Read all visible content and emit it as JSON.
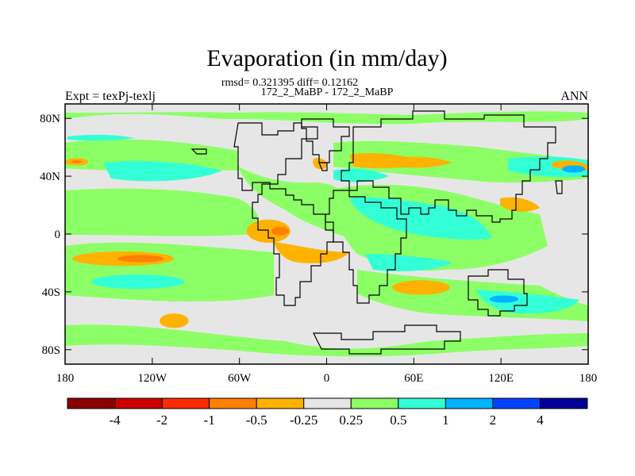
{
  "chart_data": {
    "type": "heatmap",
    "title": "Evaporation (in mm/day)",
    "stats_line": "rmsd= 0.321395 diff= 0.12162",
    "subtitle": "172_2_MaBP - 172_2_MaBP",
    "left_label": "Expt = texPj-texlj",
    "right_label": "ANN",
    "x_ticks": [
      {
        "value": -180,
        "label": "180"
      },
      {
        "value": -120,
        "label": "120W"
      },
      {
        "value": -60,
        "label": "60W"
      },
      {
        "value": 0,
        "label": "0"
      },
      {
        "value": 60,
        "label": "60E"
      },
      {
        "value": 120,
        "label": "120E"
      },
      {
        "value": 180,
        "label": "180"
      }
    ],
    "y_ticks": [
      {
        "value": 80,
        "label": "80N"
      },
      {
        "value": 40,
        "label": "40N"
      },
      {
        "value": 0,
        "label": "0"
      },
      {
        "value": -40,
        "label": "40S"
      },
      {
        "value": -80,
        "label": "80S"
      }
    ],
    "xlim": [
      -180,
      180
    ],
    "ylim": [
      -90,
      90
    ],
    "colorbar": {
      "colors": [
        "#8b0000",
        "#cc0000",
        "#ff2a00",
        "#ff7f00",
        "#ffb200",
        "#e6e6e6",
        "#8cff66",
        "#33ffd6",
        "#00b3ff",
        "#0044ff",
        "#000099"
      ],
      "labels": [
        "-4",
        "-2",
        "-1",
        "-0.5",
        "-0.25",
        "0.25",
        "0.5",
        "1",
        "2",
        "4"
      ]
    },
    "regions": [
      {
        "name": "pac-orange-band",
        "color": "#ffb200",
        "cx": -140,
        "cy": -17,
        "rx": 35,
        "ry": 5
      },
      {
        "name": "pac-red-band",
        "color": "#ff7f00",
        "cx": -128,
        "cy": -17,
        "rx": 16,
        "ry": 2.5
      },
      {
        "name": "pac-cyan-band",
        "color": "#33ffd6",
        "cx": -130,
        "cy": -33,
        "rx": 32,
        "ry": 5
      },
      {
        "name": "sa-orange",
        "color": "#ffb200",
        "cx": -40,
        "cy": 2,
        "rx": 15,
        "ry": 8
      },
      {
        "name": "sa-red",
        "color": "#ff7f00",
        "cx": -32,
        "cy": 2,
        "rx": 6,
        "ry": 3
      },
      {
        "name": "natl-orange-west",
        "color": "#ffb200",
        "cx": -172,
        "cy": 50,
        "rx": 8,
        "ry": 2.5
      },
      {
        "name": "natl-red-west",
        "color": "#ff7f00",
        "cx": -172,
        "cy": 50,
        "rx": 4,
        "ry": 1
      },
      {
        "name": "africa-orange",
        "color": "#ffb200",
        "cx": 65,
        "cy": -37,
        "rx": 20,
        "ry": 5
      },
      {
        "name": "south-orange",
        "color": "#ffb200",
        "cx": -105,
        "cy": -60,
        "rx": 10,
        "ry": 5
      },
      {
        "name": "io-blue",
        "color": "#00b3ff",
        "cx": 122,
        "cy": -45,
        "rx": 10,
        "ry": 2.5
      },
      {
        "name": "np-blue",
        "color": "#00b3ff",
        "cx": 170,
        "cy": 45,
        "rx": 8,
        "ry": 2.5
      }
    ]
  }
}
